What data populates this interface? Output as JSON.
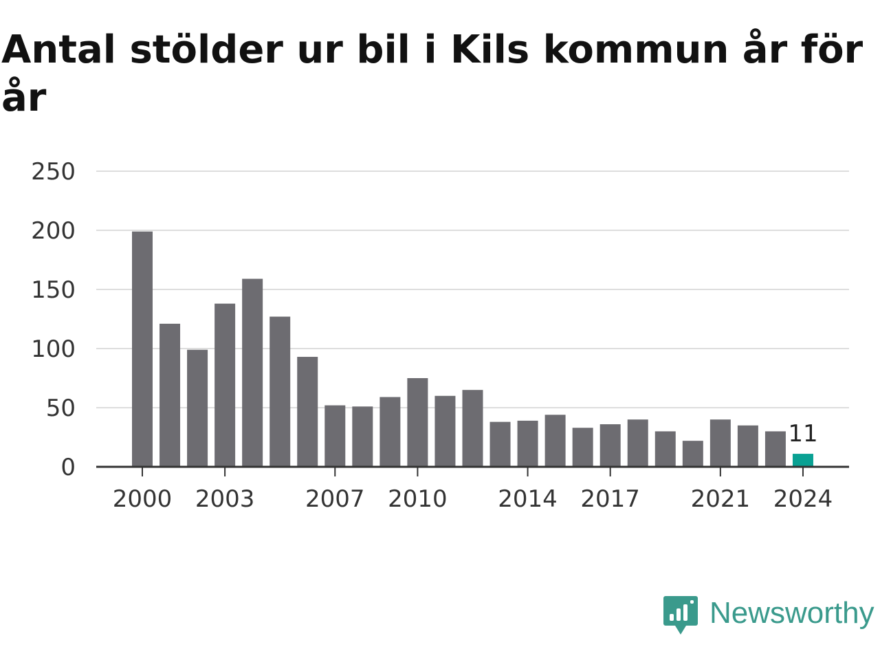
{
  "title": "Antal stölder ur bil i Kils kommun år för år",
  "brand": {
    "name": "Newsworthy",
    "icon": "newsworthy-logo-icon"
  },
  "colors": {
    "bar": "#6d6c71",
    "highlight": "#0aa193",
    "grid": "#dddddd",
    "axis": "#333333",
    "brand": "#3a9a8c"
  },
  "chart_data": {
    "type": "bar",
    "title": "Antal stölder ur bil i Kils kommun år för år",
    "xlabel": "",
    "ylabel": "",
    "ylim": [
      0,
      250
    ],
    "yticks": [
      0,
      50,
      100,
      150,
      200,
      250
    ],
    "grid": true,
    "categories": [
      2000,
      2001,
      2002,
      2003,
      2004,
      2005,
      2006,
      2007,
      2008,
      2009,
      2010,
      2011,
      2012,
      2013,
      2014,
      2015,
      2016,
      2017,
      2018,
      2019,
      2020,
      2021,
      2022,
      2023,
      2024
    ],
    "xtick_labels": [
      2000,
      2003,
      2007,
      2010,
      2014,
      2017,
      2021,
      2024
    ],
    "values": [
      199,
      121,
      99,
      138,
      159,
      127,
      93,
      52,
      51,
      59,
      75,
      60,
      65,
      38,
      39,
      44,
      33,
      36,
      40,
      30,
      22,
      40,
      35,
      30,
      11
    ],
    "highlight_category": 2024,
    "annotations": [
      {
        "category": 2024,
        "text": "11"
      }
    ]
  }
}
